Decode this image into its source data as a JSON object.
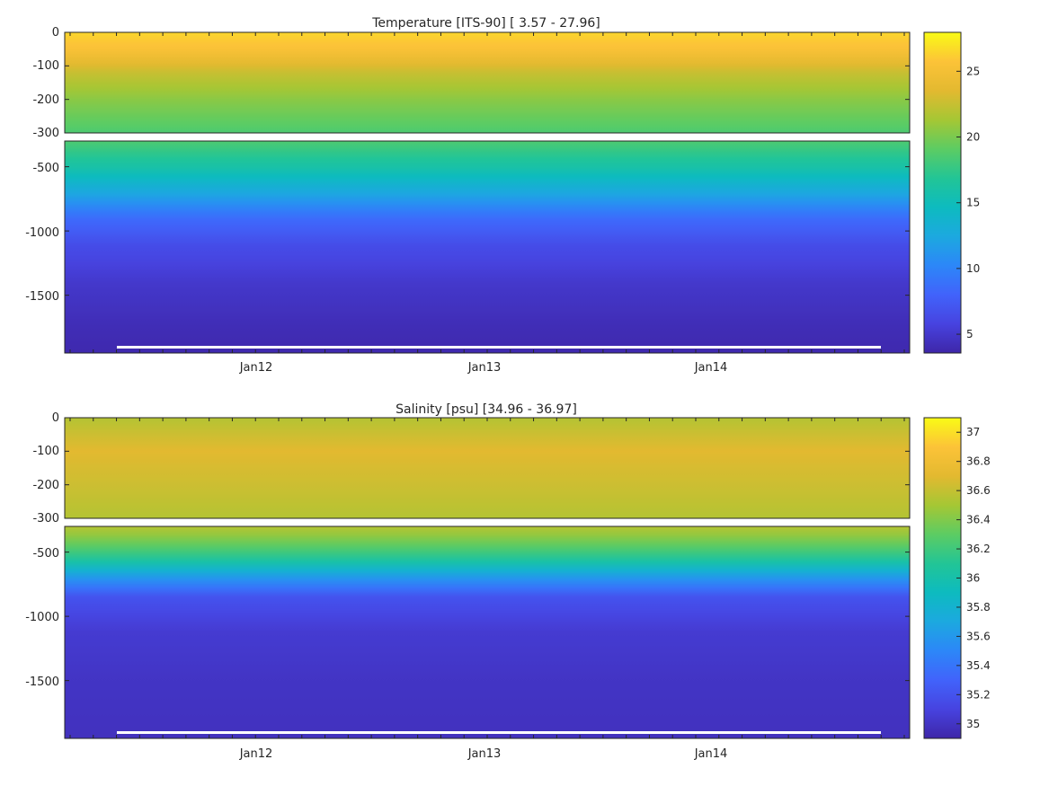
{
  "chart_data": [
    {
      "type": "heatmap",
      "title": "Temperature [ITS-90]   [ 3.57 - 27.96]",
      "value_range": [
        3.57,
        27.96
      ],
      "x_tick_labels": [
        "Jan12",
        "Jan13",
        "Jan14"
      ],
      "upper_panel": {
        "ylim": [
          -300,
          0
        ],
        "y_ticks": [
          0,
          -100,
          -200,
          -300
        ]
      },
      "lower_panel": {
        "ylim": [
          -1950,
          -300
        ],
        "y_ticks": [
          -500,
          -1000,
          -1500
        ]
      },
      "colorbar": {
        "ticks": [
          5,
          10,
          15,
          20,
          25
        ],
        "range": [
          3.57,
          27.96
        ]
      },
      "colormap": [
        "#3e26a8",
        "#4743e0",
        "#4163fb",
        "#2c87f8",
        "#1ca9df",
        "#0dbbbf",
        "#22c596",
        "#5ccc63",
        "#a5c734",
        "#e3b930",
        "#fcc338",
        "#f9fb15"
      ],
      "profile_levels": [
        {
          "depth": 0,
          "value": 26.5
        },
        {
          "depth": -50,
          "value": 25.5
        },
        {
          "depth": -120,
          "value": 22.5
        },
        {
          "depth": -200,
          "value": 20.5
        },
        {
          "depth": -300,
          "value": 18.5
        },
        {
          "depth": -500,
          "value": 16.0
        },
        {
          "depth": -700,
          "value": 12.5
        },
        {
          "depth": -900,
          "value": 8.5
        },
        {
          "depth": -1100,
          "value": 6.5
        },
        {
          "depth": -1400,
          "value": 5.0
        },
        {
          "depth": -1700,
          "value": 4.2
        },
        {
          "depth": -1950,
          "value": 3.8
        }
      ]
    },
    {
      "type": "heatmap",
      "title": "Salinity [psu]   [34.96 - 36.97]",
      "value_range": [
        34.96,
        36.97
      ],
      "x_tick_labels": [
        "Jan12",
        "Jan13",
        "Jan14"
      ],
      "upper_panel": {
        "ylim": [
          -300,
          0
        ],
        "y_ticks": [
          0,
          -100,
          -200,
          -300
        ]
      },
      "lower_panel": {
        "ylim": [
          -1950,
          -300
        ],
        "y_ticks": [
          -500,
          -1000,
          -1500
        ]
      },
      "colorbar": {
        "ticks": [
          35,
          35.2,
          35.4,
          35.6,
          35.8,
          36,
          36.2,
          36.4,
          36.6,
          36.8,
          37
        ],
        "range": [
          34.9,
          37.1
        ]
      },
      "colormap": [
        "#3e26a8",
        "#4743e0",
        "#4163fb",
        "#2c87f8",
        "#1ca9df",
        "#0dbbbf",
        "#22c596",
        "#5ccc63",
        "#a5c734",
        "#e3b930",
        "#fcc338",
        "#f9fb15"
      ],
      "profile_levels": [
        {
          "depth": 0,
          "value": 36.55
        },
        {
          "depth": -100,
          "value": 36.7
        },
        {
          "depth": -300,
          "value": 36.55
        },
        {
          "depth": -400,
          "value": 36.4
        },
        {
          "depth": -550,
          "value": 36.1
        },
        {
          "depth": -700,
          "value": 35.6
        },
        {
          "depth": -850,
          "value": 35.2
        },
        {
          "depth": -1100,
          "value": 35.05
        },
        {
          "depth": -1500,
          "value": 35.0
        },
        {
          "depth": -1950,
          "value": 34.98
        }
      ]
    }
  ]
}
